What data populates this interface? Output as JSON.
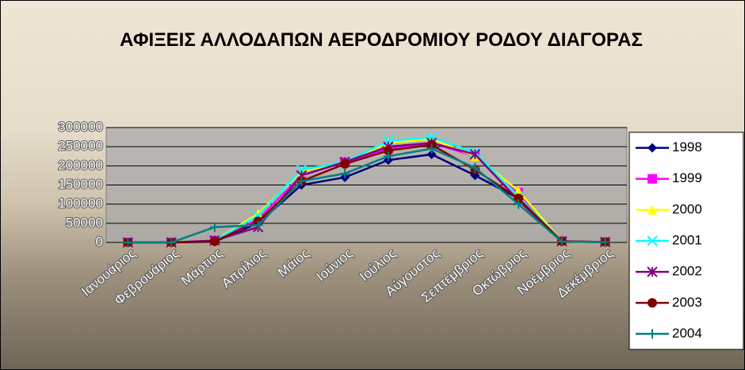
{
  "chart_data": {
    "type": "line",
    "title": "ΑΦΙΞΕΙΣ ΑΛΛΟΔΑΠΩΝ ΑΕΡΟΔΡΟΜΙΟΥ ΡΟΔΟΥ ΔΙΑΓΟΡΑΣ",
    "categories": [
      "Ιανουάριος",
      "Φεβρουάριος",
      "Μάρτιος",
      "Απρίλιος",
      "Μάιος",
      "Ιούνιος",
      "Ιούλιος",
      "Αύγουστος",
      "Σεπτέμβριος",
      "Οκτώβριος",
      "Νοέμβριος",
      "Δεκέμβριος"
    ],
    "ylim": [
      0,
      300000
    ],
    "yticks": [
      0,
      50000,
      100000,
      150000,
      200000,
      250000,
      300000
    ],
    "grid": true,
    "legend": "right",
    "series": [
      {
        "name": "1998",
        "color": "#000080",
        "marker": "diamond",
        "values": [
          0,
          0,
          2000,
          50000,
          150000,
          170000,
          215000,
          230000,
          175000,
          115000,
          2000,
          1000
        ]
      },
      {
        "name": "1999",
        "color": "#ff00ff",
        "marker": "square",
        "values": [
          0,
          0,
          5000,
          60000,
          175000,
          210000,
          245000,
          260000,
          225000,
          130000,
          3000,
          1000
        ]
      },
      {
        "name": "2000",
        "color": "#ffff00",
        "marker": "triangle",
        "values": [
          0,
          0,
          5000,
          75000,
          185000,
          210000,
          260000,
          270000,
          225000,
          135000,
          3000,
          1000
        ]
      },
      {
        "name": "2001",
        "color": "#00ffff",
        "marker": "x",
        "values": [
          0,
          0,
          5000,
          70000,
          190000,
          210000,
          265000,
          275000,
          235000,
          120000,
          3000,
          1000
        ]
      },
      {
        "name": "2002",
        "color": "#800080",
        "marker": "star",
        "values": [
          0,
          0,
          5000,
          40000,
          175000,
          210000,
          250000,
          260000,
          230000,
          110000,
          3000,
          1000
        ]
      },
      {
        "name": "2003",
        "color": "#800000",
        "marker": "circle",
        "values": [
          0,
          0,
          3000,
          55000,
          160000,
          205000,
          240000,
          255000,
          190000,
          115000,
          3000,
          1000
        ]
      },
      {
        "name": "2004",
        "color": "#008080",
        "marker": "plus",
        "values": [
          0,
          0,
          40000,
          45000,
          160000,
          180000,
          225000,
          245000,
          195000,
          100000,
          2000,
          1000
        ]
      }
    ]
  }
}
